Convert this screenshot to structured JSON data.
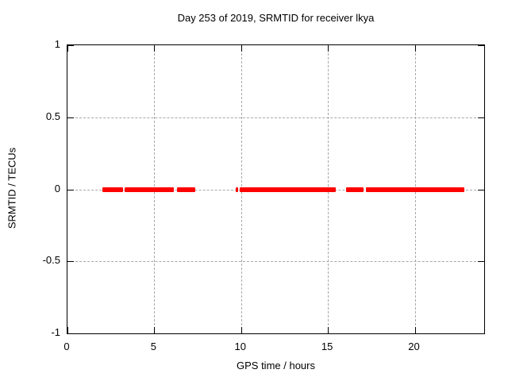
{
  "colors": {
    "series": "#ff0000",
    "grid": "#a8a8a8",
    "border": "#000000",
    "text": "#000000",
    "background": "#ffffff"
  },
  "chart_data": {
    "type": "line",
    "title": "Day 253 of 2019, SRMTID for receiver lkya",
    "xlabel": "GPS time / hours",
    "ylabel": "SRMTID / TECUs",
    "xlim": [
      0,
      24
    ],
    "ylim": [
      -1,
      1
    ],
    "xticks": [
      0,
      5,
      10,
      15,
      20
    ],
    "xtick_labels": [
      "0",
      "5",
      "10",
      "15",
      "20"
    ],
    "yticks": [
      -1,
      -0.5,
      0,
      0.5,
      1
    ],
    "ytick_labels": [
      "-1",
      "-0.5",
      "0",
      "0.5",
      "1"
    ],
    "grid": true,
    "legend": false,
    "series": [
      {
        "name": "SRMTID",
        "color": "#ff0000",
        "y_value": 0,
        "segments_hours": [
          [
            2.03,
            3.18
          ],
          [
            3.31,
            6.14
          ],
          [
            6.3,
            7.36
          ],
          [
            9.71,
            9.85
          ],
          [
            9.92,
            15.44
          ],
          [
            16.05,
            17.03
          ],
          [
            17.17,
            22.86
          ]
        ]
      }
    ]
  }
}
